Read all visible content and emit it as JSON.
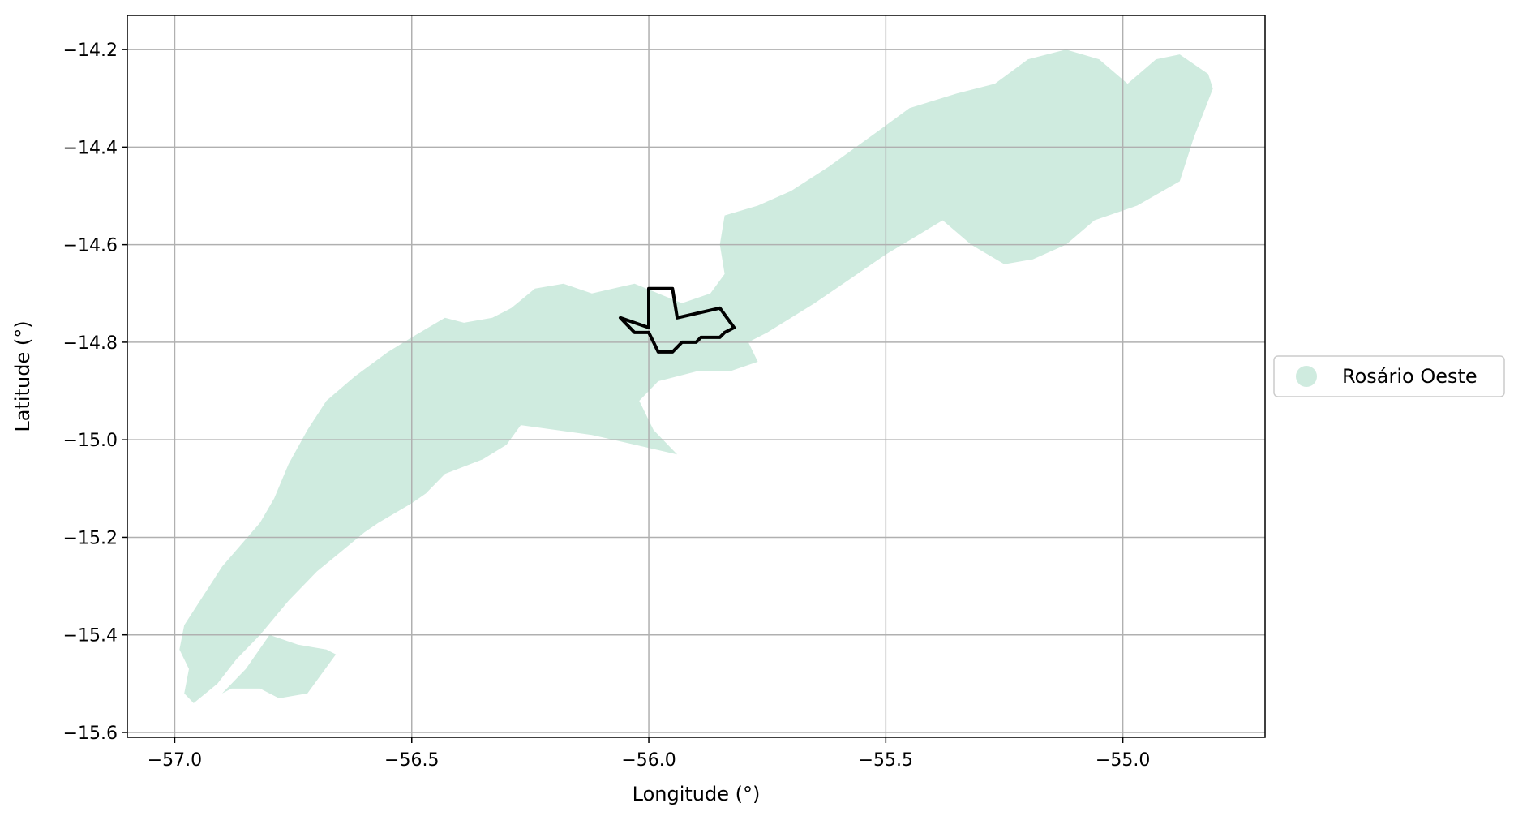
{
  "chart_data": {
    "type": "map",
    "xlabel": "Longitude (°)",
    "ylabel": "Latitude (°)",
    "xlim": [
      -57.1,
      -54.7
    ],
    "ylim": [
      -15.61,
      -14.13
    ],
    "grid": true,
    "x_ticks": [
      -57.0,
      -56.5,
      -56.0,
      -55.5,
      -55.0
    ],
    "x_tick_labels": [
      "−57.0",
      "−56.5",
      "−56.0",
      "−55.5",
      "−55.0"
    ],
    "y_ticks": [
      -14.2,
      -14.4,
      -14.6,
      -14.8,
      -15.0,
      -15.2,
      -15.4,
      -15.6
    ],
    "y_tick_labels": [
      "−14.2",
      "−14.4",
      "−14.6",
      "−14.8",
      "−15.0",
      "−15.2",
      "−15.4",
      "−15.6"
    ],
    "legend": {
      "placement": "right",
      "entries": [
        {
          "label": "Rosário Oeste",
          "color": "#cfebdf"
        }
      ]
    },
    "region": {
      "name": "Rosário Oeste",
      "fill": "#cfebdf",
      "main_polygon": [
        [
          -56.96,
          -15.54
        ],
        [
          -56.98,
          -15.52
        ],
        [
          -56.97,
          -15.47
        ],
        [
          -56.99,
          -15.43
        ],
        [
          -56.98,
          -15.38
        ],
        [
          -56.9,
          -15.26
        ],
        [
          -56.82,
          -15.17
        ],
        [
          -56.79,
          -15.12
        ],
        [
          -56.76,
          -15.05
        ],
        [
          -56.72,
          -14.98
        ],
        [
          -56.68,
          -14.92
        ],
        [
          -56.62,
          -14.87
        ],
        [
          -56.55,
          -14.82
        ],
        [
          -56.5,
          -14.79
        ],
        [
          -56.43,
          -14.75
        ],
        [
          -56.39,
          -14.76
        ],
        [
          -56.33,
          -14.75
        ],
        [
          -56.29,
          -14.73
        ],
        [
          -56.24,
          -14.69
        ],
        [
          -56.18,
          -14.68
        ],
        [
          -56.12,
          -14.7
        ],
        [
          -56.03,
          -14.68
        ],
        [
          -55.98,
          -14.7
        ],
        [
          -55.93,
          -14.72
        ],
        [
          -55.87,
          -14.7
        ],
        [
          -55.84,
          -14.66
        ],
        [
          -55.85,
          -14.6
        ],
        [
          -55.84,
          -14.54
        ],
        [
          -55.77,
          -14.52
        ],
        [
          -55.7,
          -14.49
        ],
        [
          -55.62,
          -14.44
        ],
        [
          -55.52,
          -14.37
        ],
        [
          -55.45,
          -14.32
        ],
        [
          -55.35,
          -14.29
        ],
        [
          -55.27,
          -14.27
        ],
        [
          -55.2,
          -14.22
        ],
        [
          -55.12,
          -14.2
        ],
        [
          -55.05,
          -14.22
        ],
        [
          -54.99,
          -14.27
        ],
        [
          -54.93,
          -14.22
        ],
        [
          -54.88,
          -14.21
        ],
        [
          -54.82,
          -14.25
        ],
        [
          -54.81,
          -14.28
        ],
        [
          -54.85,
          -14.38
        ],
        [
          -54.88,
          -14.47
        ],
        [
          -54.97,
          -14.52
        ],
        [
          -55.06,
          -14.55
        ],
        [
          -55.12,
          -14.6
        ],
        [
          -55.19,
          -14.63
        ],
        [
          -55.25,
          -14.64
        ],
        [
          -55.32,
          -14.6
        ],
        [
          -55.38,
          -14.55
        ],
        [
          -55.5,
          -14.62
        ],
        [
          -55.65,
          -14.72
        ],
        [
          -55.75,
          -14.78
        ],
        [
          -55.79,
          -14.8
        ],
        [
          -55.77,
          -14.84
        ],
        [
          -55.83,
          -14.86
        ],
        [
          -55.9,
          -14.86
        ],
        [
          -55.98,
          -14.88
        ],
        [
          -56.02,
          -14.92
        ],
        [
          -55.99,
          -14.98
        ],
        [
          -55.94,
          -15.03
        ],
        [
          -56.12,
          -14.99
        ],
        [
          -56.27,
          -14.97
        ],
        [
          -56.3,
          -15.01
        ],
        [
          -56.35,
          -15.04
        ],
        [
          -56.43,
          -15.07
        ],
        [
          -56.47,
          -15.11
        ],
        [
          -56.5,
          -15.13
        ],
        [
          -56.57,
          -15.17
        ],
        [
          -56.6,
          -15.19
        ],
        [
          -56.65,
          -15.23
        ],
        [
          -56.7,
          -15.27
        ],
        [
          -56.76,
          -15.33
        ],
        [
          -56.82,
          -15.4
        ],
        [
          -56.87,
          -15.45
        ],
        [
          -56.91,
          -15.5
        ],
        [
          -56.96,
          -15.54
        ]
      ],
      "secondary_polygon": [
        [
          -56.9,
          -15.52
        ],
        [
          -56.85,
          -15.47
        ],
        [
          -56.8,
          -15.4
        ],
        [
          -56.74,
          -15.42
        ],
        [
          -56.68,
          -15.43
        ],
        [
          -56.66,
          -15.44
        ],
        [
          -56.72,
          -15.52
        ],
        [
          -56.78,
          -15.53
        ],
        [
          -56.82,
          -15.51
        ],
        [
          -56.88,
          -15.51
        ],
        [
          -56.9,
          -15.52
        ]
      ]
    },
    "outline": {
      "stroke": "#000000",
      "points": [
        [
          -56.0,
          -14.69
        ],
        [
          -55.95,
          -14.69
        ],
        [
          -55.94,
          -14.75
        ],
        [
          -55.85,
          -14.73
        ],
        [
          -55.82,
          -14.77
        ],
        [
          -55.84,
          -14.78
        ],
        [
          -55.85,
          -14.79
        ],
        [
          -55.89,
          -14.79
        ],
        [
          -55.9,
          -14.8
        ],
        [
          -55.93,
          -14.8
        ],
        [
          -55.95,
          -14.82
        ],
        [
          -55.97,
          -14.82
        ],
        [
          -55.98,
          -14.82
        ],
        [
          -55.99,
          -14.8
        ],
        [
          -56.0,
          -14.78
        ],
        [
          -56.01,
          -14.78
        ],
        [
          -56.03,
          -14.78
        ],
        [
          -56.05,
          -14.76
        ],
        [
          -56.06,
          -14.75
        ],
        [
          -56.0,
          -14.77
        ],
        [
          -56.0,
          -14.72
        ],
        [
          -56.0,
          -14.69
        ]
      ]
    }
  }
}
